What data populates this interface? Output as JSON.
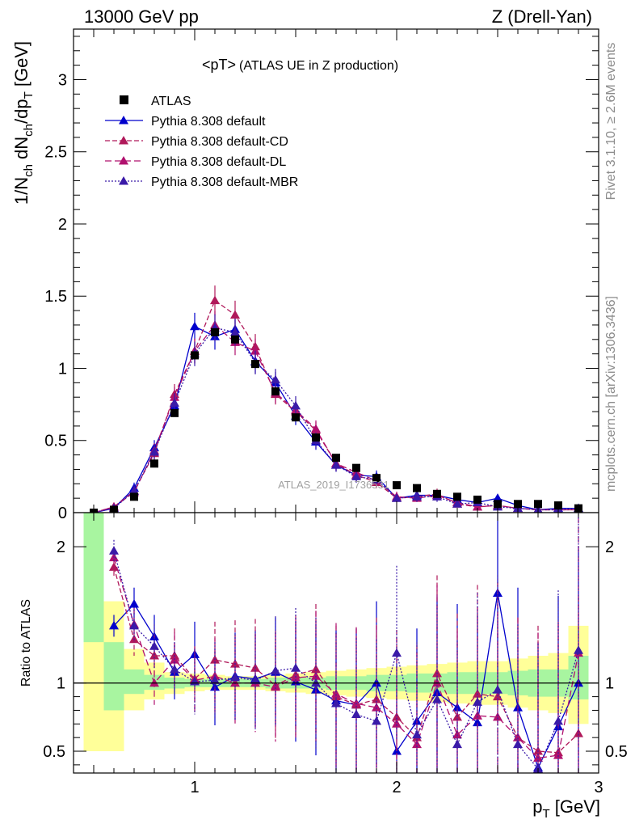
{
  "header": {
    "left": "13000 GeV pp",
    "right": "Z (Drell-Yan)"
  },
  "side": {
    "rivet": "Rivet 3.1.10, ≥ 2.6M events",
    "mcplots": "mcplots.cern.ch [arXiv:1306.3436]"
  },
  "chart_data": {
    "type": "line",
    "title_main": "<pT>",
    "title_sub": "(ATLAS UE in Z production)",
    "watermark": "ATLAS_2019_I1736531",
    "ylabel_top": "1/N_ch dN_ch/dp_T [GeV]",
    "ylabel_bottom": "Ratio to ATLAS",
    "xlabel": "p_T [GeV]",
    "xlim": [
      0.4,
      3.0
    ],
    "ylim_top": [
      0,
      3.35
    ],
    "ylim_bottom": [
      0.34,
      2.25
    ],
    "xticks": [
      1,
      2,
      3
    ],
    "yticks_top": [
      0,
      0.5,
      1,
      1.5,
      2,
      2.5,
      3
    ],
    "yticks_bottom": [
      0.5,
      1,
      2
    ],
    "colors": {
      "data": "#000000",
      "default": "#0000cc",
      "cd": "#b0195a",
      "dl": "#b0106e",
      "mbr": "#3a1aa8",
      "band_inner": "#a8f5a0",
      "band_outer": "#ffff99"
    },
    "x": [
      0.5,
      0.6,
      0.7,
      0.8,
      0.9,
      1.0,
      1.1,
      1.2,
      1.3,
      1.4,
      1.5,
      1.6,
      1.7,
      1.8,
      1.9,
      2.0,
      2.1,
      2.2,
      2.3,
      2.4,
      2.5,
      2.6,
      2.7,
      2.8,
      2.9
    ],
    "atlas": [
      0.0,
      0.02,
      0.11,
      0.34,
      0.69,
      1.09,
      1.25,
      1.2,
      1.03,
      0.84,
      0.66,
      0.52,
      0.38,
      0.31,
      0.24,
      0.19,
      0.17,
      0.13,
      0.11,
      0.09,
      0.06,
      0.06,
      0.06,
      0.05,
      0.03
    ],
    "band_inner": [
      1.3,
      0.8,
      0.92,
      0.95,
      0.96,
      0.97,
      0.97,
      0.97,
      0.97,
      0.96,
      0.96,
      0.96,
      0.95,
      0.95,
      0.94,
      0.94,
      0.93,
      0.93,
      0.92,
      0.92,
      0.92,
      0.91,
      0.9,
      0.9,
      0.88
    ],
    "band_inner_hi": [
      2.25,
      1.3,
      1.1,
      1.06,
      1.04,
      1.03,
      1.03,
      1.03,
      1.03,
      1.04,
      1.04,
      1.04,
      1.05,
      1.05,
      1.06,
      1.06,
      1.07,
      1.07,
      1.08,
      1.08,
      1.08,
      1.09,
      1.1,
      1.1,
      1.2
    ],
    "band_outer_lo": [
      0.5,
      0.5,
      0.8,
      0.88,
      0.92,
      0.94,
      0.95,
      0.95,
      0.95,
      0.94,
      0.93,
      0.92,
      0.91,
      0.9,
      0.89,
      0.88,
      0.87,
      0.86,
      0.85,
      0.84,
      0.84,
      0.82,
      0.8,
      0.78,
      0.7
    ],
    "band_outer_hi": [
      2.25,
      1.6,
      1.25,
      1.15,
      1.08,
      1.07,
      1.06,
      1.05,
      1.05,
      1.06,
      1.07,
      1.08,
      1.09,
      1.1,
      1.11,
      1.12,
      1.13,
      1.14,
      1.15,
      1.16,
      1.16,
      1.18,
      1.2,
      1.22,
      1.42
    ],
    "series": [
      {
        "name": "Pythia 8.308 default",
        "key": "default",
        "dash": "",
        "values": [
          0.0,
          0.03,
          0.17,
          0.45,
          0.74,
          1.29,
          1.22,
          1.27,
          1.05,
          0.9,
          0.67,
          0.49,
          0.33,
          0.26,
          0.25,
          0.1,
          0.12,
          0.12,
          0.09,
          0.07,
          0.1,
          0.05,
          0.02,
          0.03,
          0.03
        ],
        "ratio": [
          0.0,
          1.42,
          1.58,
          1.34,
          1.08,
          1.21,
          0.97,
          1.05,
          1.03,
          1.08,
          1.01,
          0.95,
          0.87,
          0.84,
          1.0,
          0.5,
          0.72,
          0.93,
          0.82,
          0.71,
          1.66,
          0.82,
          0.38,
          0.68,
          1.0
        ]
      },
      {
        "name": "Pythia 8.308 default-CD",
        "key": "cd",
        "dash": "6,3",
        "values": [
          0.0,
          0.04,
          0.15,
          0.41,
          0.82,
          1.12,
          1.47,
          1.37,
          1.15,
          0.82,
          0.7,
          0.57,
          0.34,
          0.26,
          0.21,
          0.1,
          0.11,
          0.13,
          0.06,
          0.04,
          0.05,
          0.03,
          0.02,
          0.02,
          0.02
        ],
        "ratio": [
          0.0,
          1.85,
          1.32,
          1.2,
          1.2,
          1.03,
          1.17,
          1.14,
          1.11,
          0.98,
          1.06,
          1.1,
          0.9,
          0.84,
          0.88,
          0.75,
          0.6,
          1.07,
          0.75,
          0.92,
          0.9,
          0.6,
          0.5,
          0.49,
          0.63
        ]
      },
      {
        "name": "Pythia 8.308 default-DL",
        "key": "dl",
        "dash": "8,4",
        "values": [
          0.0,
          0.04,
          0.14,
          0.43,
          0.8,
          1.12,
          1.3,
          1.18,
          1.12,
          0.83,
          0.71,
          0.58,
          0.34,
          0.28,
          0.22,
          0.11,
          0.1,
          0.12,
          0.07,
          0.04,
          0.05,
          0.03,
          0.02,
          0.02,
          0.02
        ],
        "ratio": [
          0.0,
          1.92,
          1.43,
          1.0,
          1.17,
          1.02,
          1.05,
          1.0,
          1.0,
          0.97,
          1.04,
          1.05,
          0.92,
          0.85,
          0.82,
          0.7,
          0.55,
          1.0,
          0.62,
          0.76,
          0.75,
          0.6,
          0.45,
          0.47,
          1.22
        ]
      },
      {
        "name": "Pythia 8.308 default-MBR",
        "key": "mbr",
        "dash": "2,2",
        "values": [
          0.0,
          0.03,
          0.15,
          0.42,
          0.76,
          1.1,
          1.28,
          1.25,
          1.04,
          0.92,
          0.74,
          0.5,
          0.33,
          0.25,
          0.23,
          0.1,
          0.11,
          0.11,
          0.06,
          0.07,
          0.04,
          0.03,
          0.02,
          0.02,
          0.03
        ],
        "ratio": [
          0.0,
          1.97,
          1.42,
          1.27,
          1.1,
          1.01,
          1.02,
          1.04,
          1.02,
          1.09,
          1.11,
          1.0,
          0.85,
          0.77,
          0.72,
          1.22,
          0.62,
          0.88,
          0.55,
          0.86,
          0.95,
          0.55,
          0.37,
          0.72,
          1.24
        ]
      }
    ]
  }
}
